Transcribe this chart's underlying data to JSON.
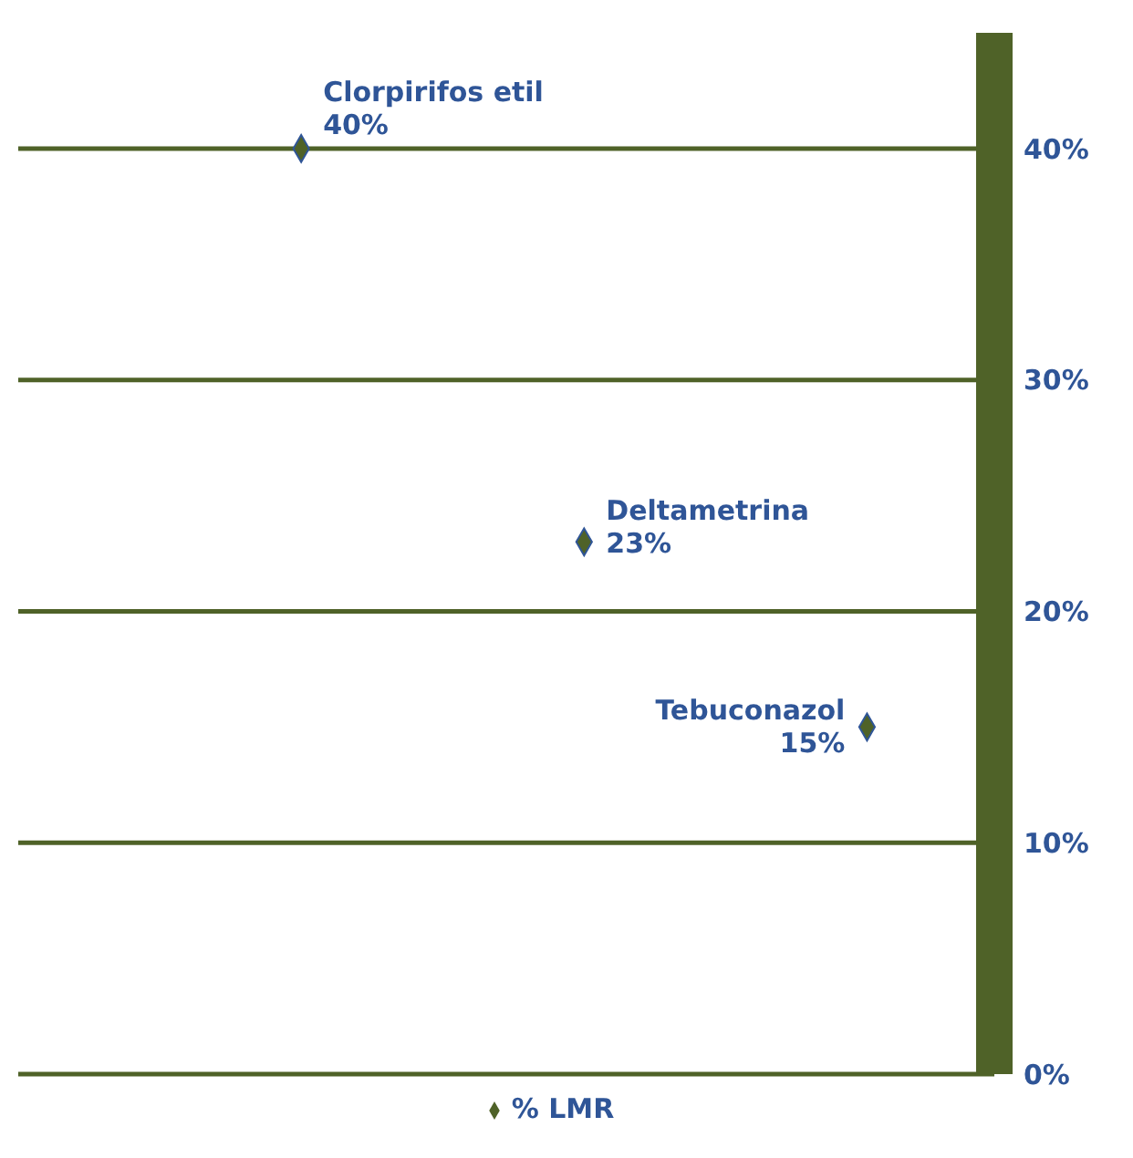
{
  "chart_data": {
    "type": "scatter",
    "categories": [
      null,
      null,
      null
    ],
    "annotations": [
      "Clorpirifos etil",
      "Deltametrina",
      "Tebuconazol"
    ],
    "series": [
      {
        "name": "% LMR",
        "color": "#4f6228",
        "values": [
          40,
          23,
          15
        ],
        "value_labels": [
          "40%",
          "23%",
          "15%"
        ]
      }
    ],
    "ylim": [
      0,
      45
    ],
    "yticks": [
      {
        "value": 0,
        "label": "0%"
      },
      {
        "value": 10,
        "label": "10%"
      },
      {
        "value": 20,
        "label": "20%"
      },
      {
        "value": 30,
        "label": "30%"
      },
      {
        "value": 40,
        "label": "40%"
      }
    ],
    "grid": "y",
    "marker": "diamond",
    "legend": "bottom"
  }
}
